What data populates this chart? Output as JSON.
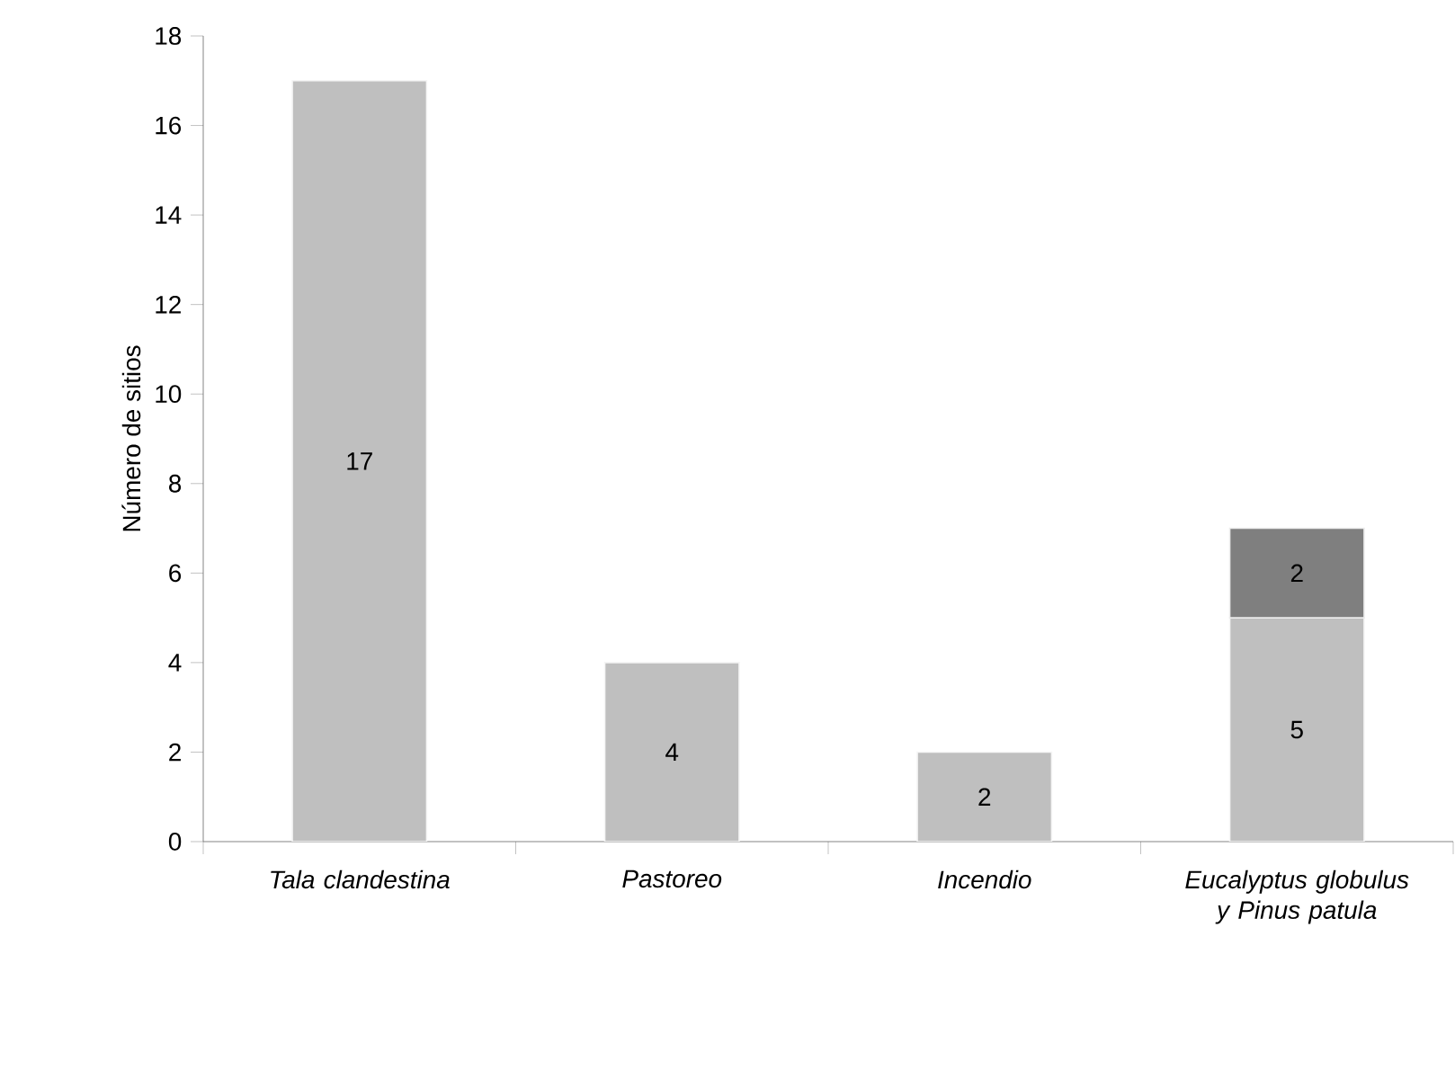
{
  "chart_data": {
    "type": "bar",
    "stacked": true,
    "ylabel": "Número de sitios",
    "categories": [
      "Tala clandestina",
      "Pastoreo",
      "Incendio",
      "Eucalyptus globulus y Pinus patula"
    ],
    "series": [
      {
        "color": "#bfbfbf",
        "values": [
          17,
          4,
          2,
          5
        ]
      },
      {
        "color": "#7f7f7f",
        "values": [
          null,
          null,
          null,
          2
        ]
      }
    ],
    "ylim": [
      0,
      18
    ],
    "yticks": [
      0,
      2,
      4,
      6,
      8,
      10,
      12,
      14,
      16,
      18
    ],
    "data_labels": true
  }
}
